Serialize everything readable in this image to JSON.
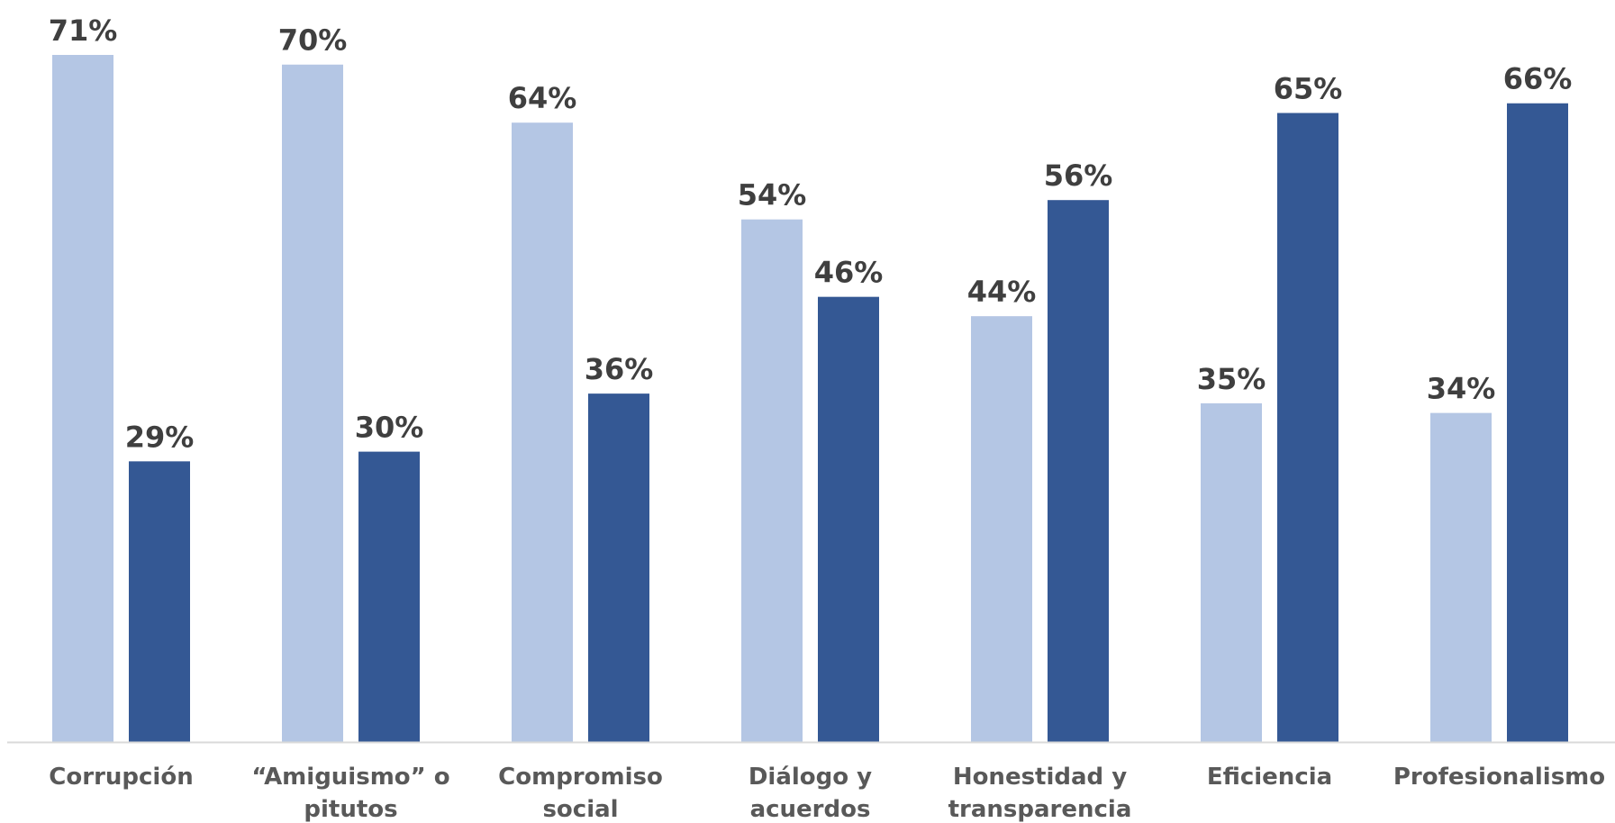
{
  "chart_data": {
    "type": "bar",
    "categories": [
      [
        "Corrupción"
      ],
      [
        "“Amiguismo” o",
        "pitutos"
      ],
      [
        "Compromiso",
        "social"
      ],
      [
        "Diálogo y",
        "acuerdos"
      ],
      [
        "Honestidad y",
        "transparencia"
      ],
      [
        "Eficiencia"
      ],
      [
        "Profesionalismo"
      ]
    ],
    "series": [
      {
        "values": [
          71,
          70,
          64,
          54,
          44,
          35,
          34
        ],
        "labels": [
          "71%",
          "70%",
          "64%",
          "54%",
          "44%",
          "35%",
          "34%"
        ],
        "color": "#b4c6e4"
      },
      {
        "values": [
          29,
          30,
          36,
          46,
          56,
          65,
          66
        ],
        "labels": [
          "29%",
          "30%",
          "36%",
          "46%",
          "56%",
          "65%",
          "66%"
        ],
        "color": "#345894"
      }
    ],
    "ylim": [
      0,
      71
    ],
    "grid": false,
    "legend": "none",
    "title": "",
    "xlabel": "",
    "ylabel": ""
  },
  "colors": {
    "axis_line": "#d9d9d9",
    "value_label": "#3f3f3f",
    "category_label": "#595959"
  }
}
